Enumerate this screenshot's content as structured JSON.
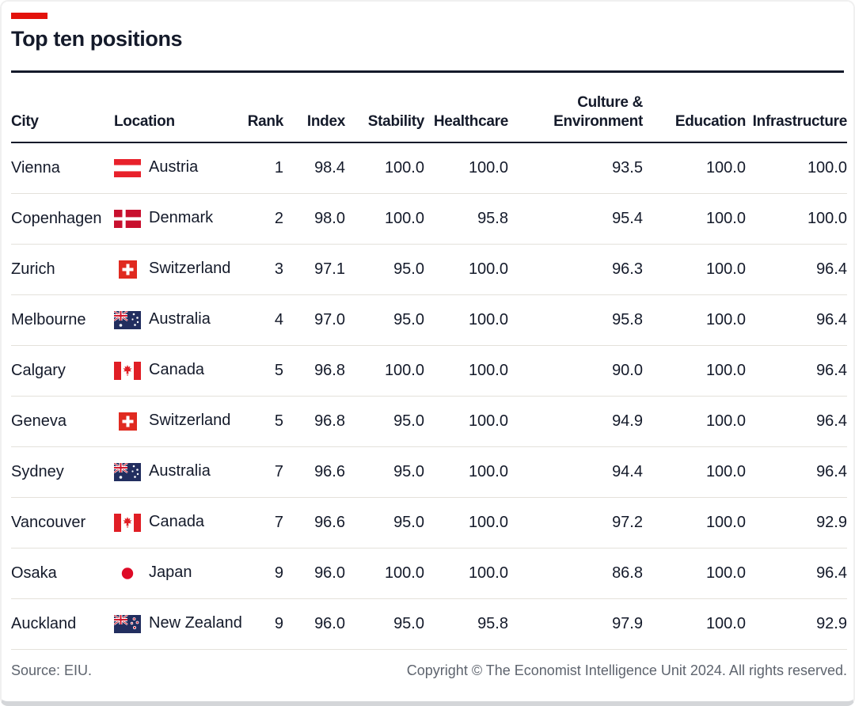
{
  "title": "Top ten positions",
  "colors": {
    "accent_red": "#E3120B",
    "text": "#141A2A",
    "rule_dark": "#141A2A",
    "row_divider": "#e4e1db",
    "footer_gray": "#5E646E"
  },
  "chart_data": {
    "type": "table",
    "title": "Top ten positions",
    "columns": [
      {
        "key": "city",
        "label": "City",
        "align": "left"
      },
      {
        "key": "location",
        "label": "Location",
        "align": "left"
      },
      {
        "key": "rank",
        "label": "Rank",
        "align": "right"
      },
      {
        "key": "index",
        "label": "Index",
        "align": "right"
      },
      {
        "key": "stability",
        "label": "Stability",
        "align": "right"
      },
      {
        "key": "healthcare",
        "label": "Healthcare",
        "align": "right"
      },
      {
        "key": "culture_environment",
        "label": "Culture &\nEnvironment",
        "align": "right"
      },
      {
        "key": "education",
        "label": "Education",
        "align": "right"
      },
      {
        "key": "infrastructure",
        "label": "Infrastructure",
        "align": "right"
      }
    ],
    "rows": [
      {
        "city": "Vienna",
        "flag": "flag-austria",
        "location": "Austria",
        "rank": "1",
        "index": "98.4",
        "stability": "100.0",
        "healthcare": "100.0",
        "culture_environment": "93.5",
        "education": "100.0",
        "infrastructure": "100.0"
      },
      {
        "city": "Copenhagen",
        "flag": "flag-denmark",
        "location": "Denmark",
        "rank": "2",
        "index": "98.0",
        "stability": "100.0",
        "healthcare": "95.8",
        "culture_environment": "95.4",
        "education": "100.0",
        "infrastructure": "100.0"
      },
      {
        "city": "Zurich",
        "flag": "flag-switzerland",
        "location": "Switzerland",
        "rank": "3",
        "index": "97.1",
        "stability": "95.0",
        "healthcare": "100.0",
        "culture_environment": "96.3",
        "education": "100.0",
        "infrastructure": "96.4"
      },
      {
        "city": "Melbourne",
        "flag": "flag-australia",
        "location": "Australia",
        "rank": "4",
        "index": "97.0",
        "stability": "95.0",
        "healthcare": "100.0",
        "culture_environment": "95.8",
        "education": "100.0",
        "infrastructure": "96.4"
      },
      {
        "city": "Calgary",
        "flag": "flag-canada",
        "location": "Canada",
        "rank": "5",
        "index": "96.8",
        "stability": "100.0",
        "healthcare": "100.0",
        "culture_environment": "90.0",
        "education": "100.0",
        "infrastructure": "96.4"
      },
      {
        "city": "Geneva",
        "flag": "flag-switzerland",
        "location": "Switzerland",
        "rank": "5",
        "index": "96.8",
        "stability": "95.0",
        "healthcare": "100.0",
        "culture_environment": "94.9",
        "education": "100.0",
        "infrastructure": "96.4"
      },
      {
        "city": "Sydney",
        "flag": "flag-australia",
        "location": "Australia",
        "rank": "7",
        "index": "96.6",
        "stability": "95.0",
        "healthcare": "100.0",
        "culture_environment": "94.4",
        "education": "100.0",
        "infrastructure": "96.4"
      },
      {
        "city": "Vancouver",
        "flag": "flag-canada",
        "location": "Canada",
        "rank": "7",
        "index": "96.6",
        "stability": "95.0",
        "healthcare": "100.0",
        "culture_environment": "97.2",
        "education": "100.0",
        "infrastructure": "92.9"
      },
      {
        "city": "Osaka",
        "flag": "flag-japan",
        "location": "Japan",
        "rank": "9",
        "index": "96.0",
        "stability": "100.0",
        "healthcare": "100.0",
        "culture_environment": "86.8",
        "education": "100.0",
        "infrastructure": "96.4"
      },
      {
        "city": "Auckland",
        "flag": "flag-newzealand",
        "location": "New Zealand",
        "rank": "9",
        "index": "96.0",
        "stability": "95.0",
        "healthcare": "95.8",
        "culture_environment": "97.9",
        "education": "100.0",
        "infrastructure": "92.9"
      }
    ]
  },
  "footer": {
    "source": "Source: EIU.",
    "copyright": "Copyright © The Economist Intelligence Unit 2024. All rights reserved."
  }
}
